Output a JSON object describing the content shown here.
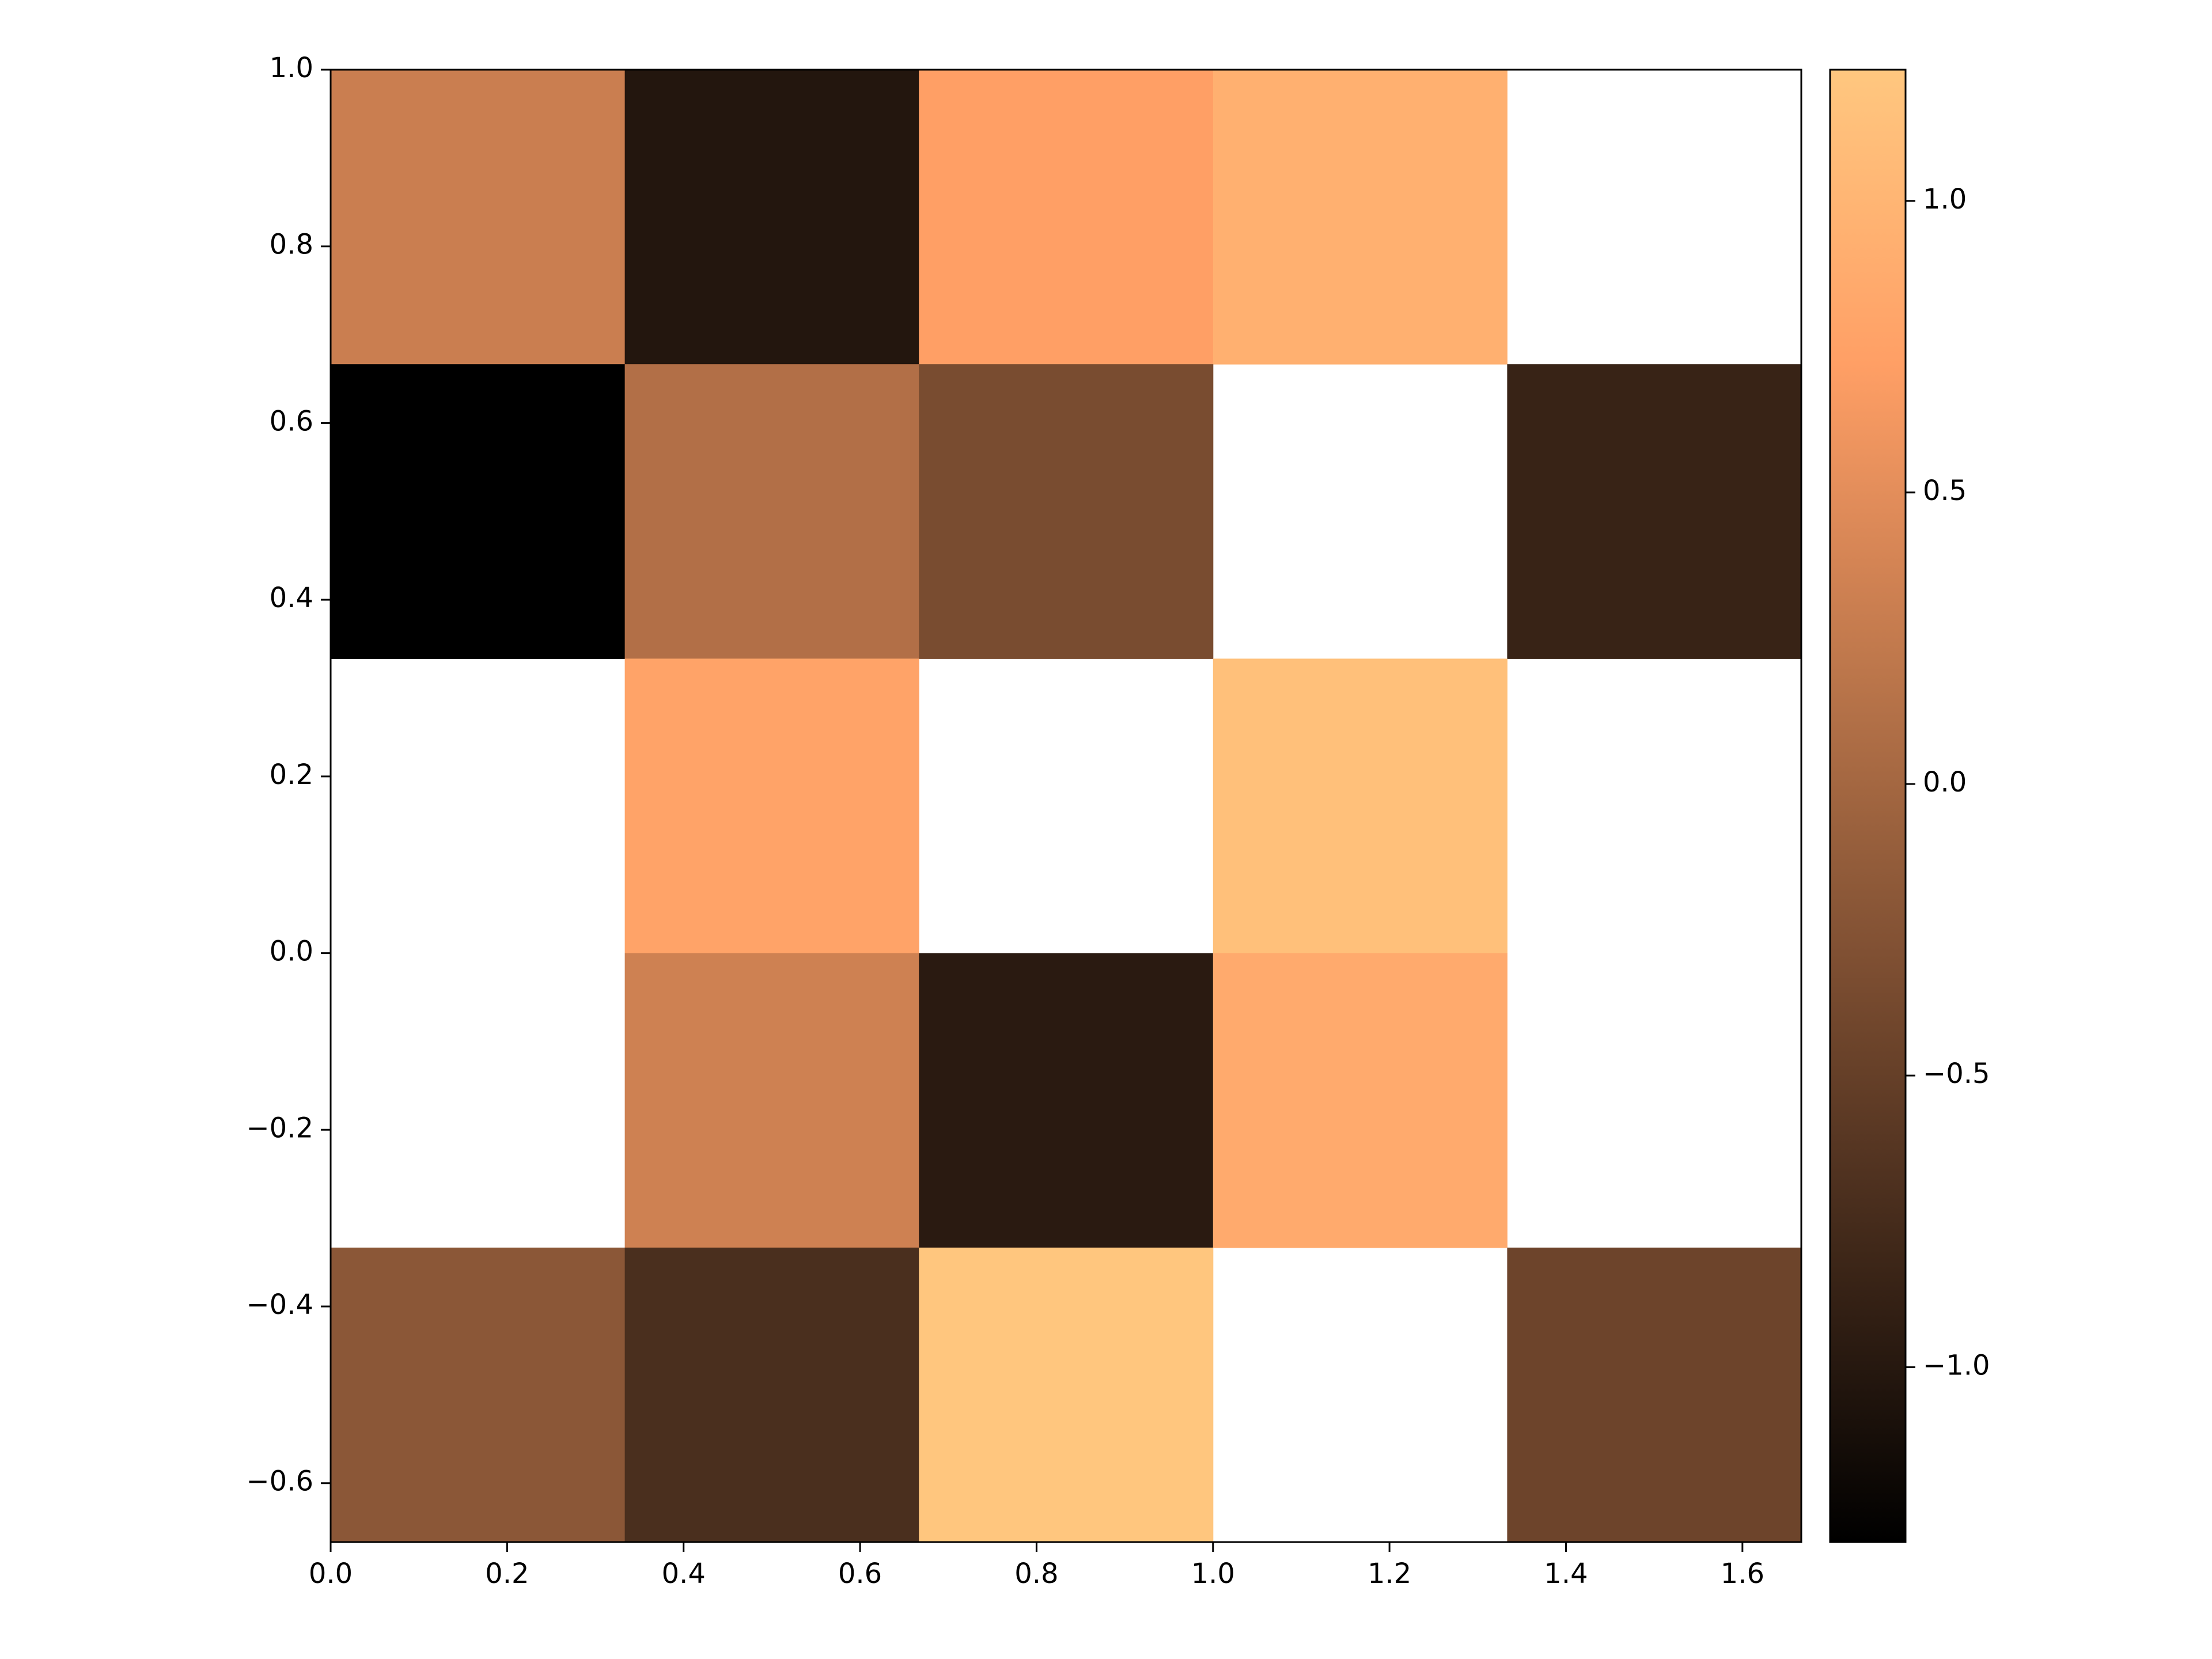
{
  "chart_data": {
    "type": "heatmap",
    "colormap": "copper",
    "values": [
      [
        0.3,
        -1.02,
        0.72,
        0.93,
        null
      ],
      [
        -1.3,
        0.11,
        -0.34,
        null,
        -0.86
      ],
      [
        null,
        0.77,
        null,
        1.13,
        null
      ],
      [
        null,
        0.33,
        -0.97,
        0.86,
        null
      ],
      [
        -0.2,
        -0.71,
        1.21,
        null,
        -0.44
      ]
    ],
    "xlim": [
      0,
      1.6667
    ],
    "ylim": [
      -0.6667,
      1
    ],
    "xticks": [
      {
        "value": 0,
        "label": "0.0"
      },
      0.2,
      0.4,
      0.6,
      0.8,
      {
        "value": 1,
        "label": "1.0"
      },
      1.2,
      1.4,
      1.6
    ],
    "yticks": [
      {
        "value": -0.6,
        "label": "−0.6"
      },
      {
        "value": -0.4,
        "label": "−0.4"
      },
      {
        "value": -0.2,
        "label": "−0.2"
      },
      {
        "value": 0,
        "label": "0.0"
      },
      0.2,
      0.4,
      0.6,
      0.8,
      {
        "value": 1,
        "label": "1.0"
      }
    ],
    "clim": [
      -1.3,
      1.225
    ],
    "cticks": [
      {
        "value": -1,
        "label": "−1.0"
      },
      {
        "value": -0.5,
        "label": "−0.5"
      },
      {
        "value": 0,
        "label": "0.0"
      },
      0.5,
      {
        "value": 1,
        "label": "1.0"
      }
    ]
  }
}
